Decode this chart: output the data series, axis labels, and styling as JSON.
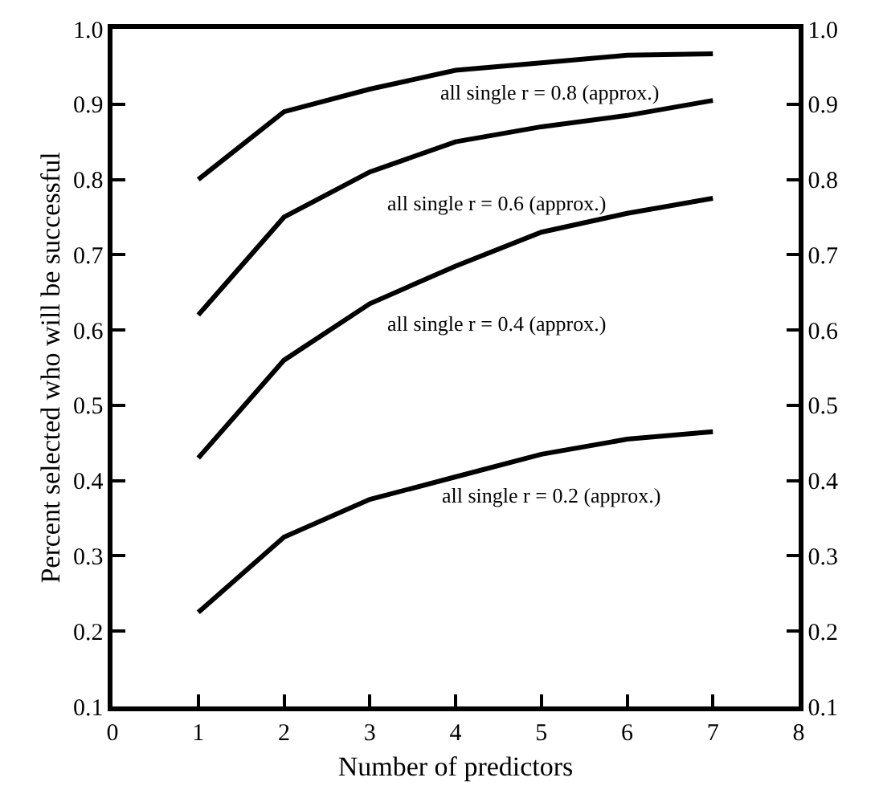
{
  "chart_data": {
    "type": "line",
    "xlabel": "Number of predictors",
    "ylabel": "Percent selected who will be successful",
    "x": [
      1,
      2,
      3,
      4,
      5,
      6,
      7
    ],
    "series": [
      {
        "color": "#000000",
        "values": [
          0.8,
          0.89,
          0.92,
          0.945,
          0.955,
          0.965,
          0.967
        ]
      },
      {
        "color": "#000000",
        "values": [
          0.62,
          0.75,
          0.81,
          0.85,
          0.87,
          0.885,
          0.905
        ]
      },
      {
        "color": "#000000",
        "values": [
          0.43,
          0.56,
          0.635,
          0.685,
          0.73,
          0.755,
          0.775
        ]
      },
      {
        "color": "#000000",
        "values": [
          0.225,
          0.325,
          0.375,
          0.405,
          0.435,
          0.455,
          0.465
        ]
      }
    ],
    "annotations": [
      "all single r = 0.8 (approx.)",
      "all single r = 0.6 (approx.)",
      "all single r = 0.4 (approx.)",
      "all single r = 0.2 (approx.)"
    ],
    "xlim": [
      0,
      8
    ],
    "xticks": [
      0,
      1,
      2,
      3,
      4,
      5,
      6,
      7,
      8
    ],
    "ylim": [
      0.1,
      1.0
    ],
    "yticks": [
      0.1,
      0.2,
      0.3,
      0.4,
      0.5,
      0.6,
      0.7,
      0.8,
      0.9,
      {
        "value": 1.0,
        "label": "1.0"
      }
    ],
    "y2lim": [
      0.1,
      1.0
    ],
    "y2ticks": [
      0.1,
      0.2,
      0.3,
      0.4,
      0.5,
      0.6,
      0.7,
      0.8,
      0.9,
      {
        "value": 1.0,
        "label": "1.0"
      }
    ],
    "marker": "none",
    "line_style": "solid"
  }
}
